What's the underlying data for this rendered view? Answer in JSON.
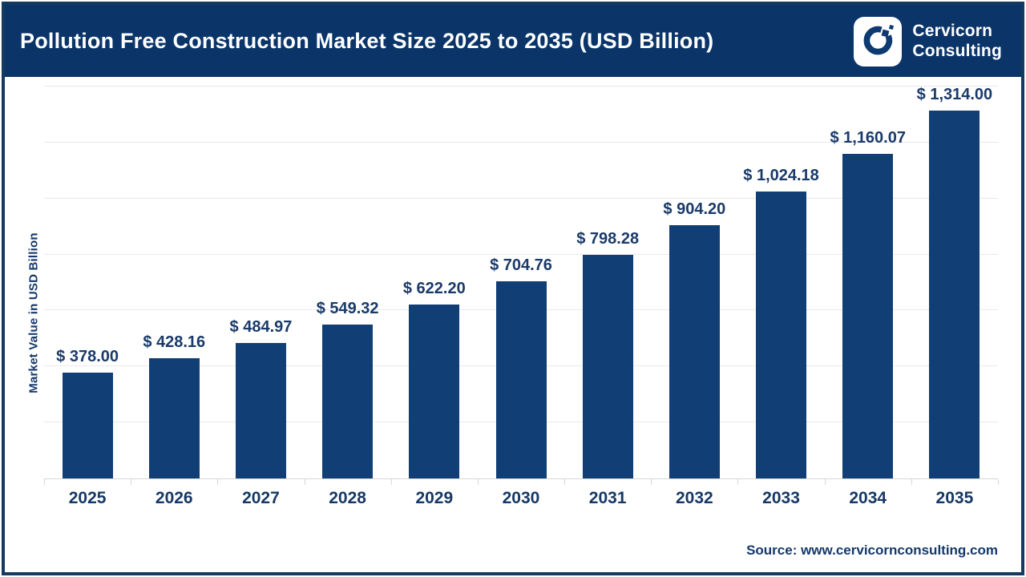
{
  "header": {
    "title": "Pollution Free Construction Market Size 2025 to 2035 (USD Billion)",
    "logo": {
      "icon": "cervicorn-c-icon",
      "line1": "Cervicorn",
      "line2": "Consulting"
    }
  },
  "chart_data": {
    "type": "bar",
    "title": "Pollution Free Construction Market Size 2025 to 2035 (USD Billion)",
    "categories": [
      "2025",
      "2026",
      "2027",
      "2028",
      "2029",
      "2030",
      "2031",
      "2032",
      "2033",
      "2034",
      "2035"
    ],
    "values": [
      378.0,
      428.16,
      484.97,
      549.32,
      622.2,
      704.76,
      798.28,
      904.2,
      1024.18,
      1160.07,
      1314.0
    ],
    "labels": [
      "$ 378.00",
      "$ 428.16",
      "$ 484.97",
      "$ 549.32",
      "$ 622.20",
      "$ 704.76",
      "$ 798.28",
      "$ 904.20",
      "$ 1,024.18",
      "$ 1,160.07",
      "$ 1,314.00"
    ],
    "xlabel": "",
    "ylabel": "Market Value in USD Billion",
    "ylim": [
      0,
      1400
    ],
    "gridline_step": 200,
    "grid": "horizontal",
    "legend": "none",
    "bar_color": "#113e75",
    "label_color": "#1a3a69"
  },
  "footer": {
    "source": "Source: www.cervicornconsulting.com"
  }
}
